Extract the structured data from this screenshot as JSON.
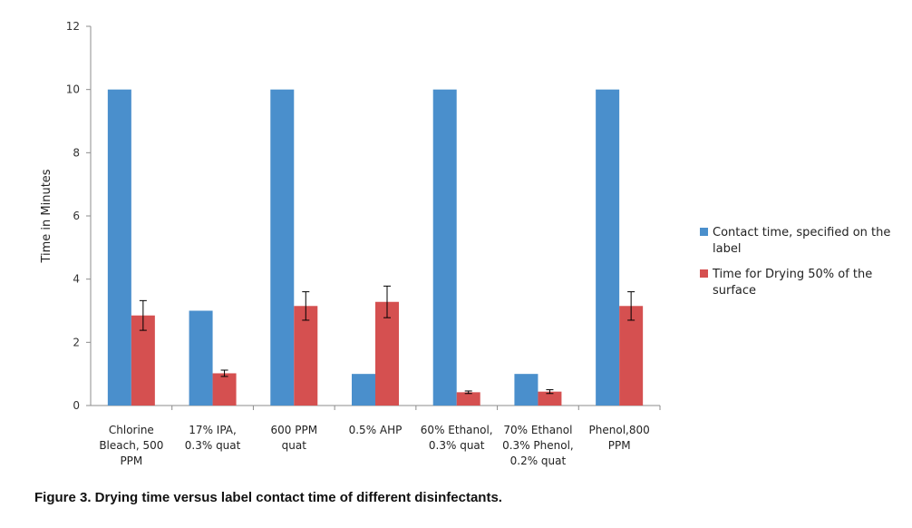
{
  "caption": "Figure  3.   Drying time versus label contact time of different disinfectants.",
  "chart_data": {
    "type": "bar",
    "title": "",
    "xlabel": "",
    "ylabel": "Time in Minutes",
    "ylim": [
      0,
      12
    ],
    "yticks": [
      0,
      2,
      4,
      6,
      8,
      10,
      12
    ],
    "grid": false,
    "legend_position": "right",
    "categories": [
      [
        "Chlorine",
        "Bleach, 500",
        "PPM"
      ],
      [
        "17% IPA,",
        "0.3% quat"
      ],
      [
        "600 PPM",
        "quat"
      ],
      [
        "0.5% AHP"
      ],
      [
        "60% Ethanol,",
        "0.3% quat"
      ],
      [
        "70% Ethanol",
        "0.3% Phenol,",
        "0.2% quat"
      ],
      [
        "Phenol,800",
        "PPM"
      ]
    ],
    "series": [
      {
        "name": [
          "Contact time, specified on the",
          "label"
        ],
        "color": "#4a8fcc",
        "values": [
          10,
          3,
          10,
          1,
          10,
          1,
          10
        ]
      },
      {
        "name": [
          "Time for Drying 50% of the",
          "surface"
        ],
        "color": "#d55050",
        "values": [
          2.85,
          1.02,
          3.15,
          3.28,
          0.42,
          0.44,
          3.15
        ],
        "errors": [
          0.47,
          0.1,
          0.45,
          0.5,
          0.04,
          0.06,
          0.45
        ]
      }
    ]
  }
}
